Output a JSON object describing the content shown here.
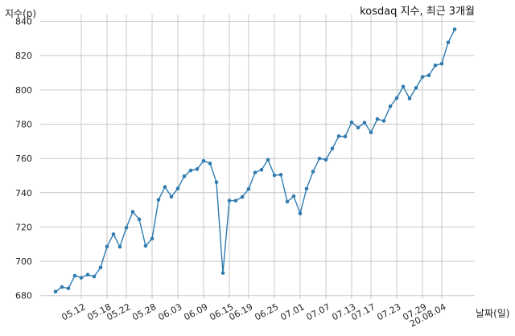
{
  "chart_data": {
    "type": "line",
    "title": "kosdaq 지수, 최근 3개월",
    "ylabel": "지수(p)",
    "xlabel": "날짜(일)",
    "ylim": [
      678,
      844
    ],
    "yticks": [
      680,
      700,
      720,
      740,
      760,
      780,
      800,
      820,
      840
    ],
    "grid": true,
    "color": "#2f7bb0",
    "xtick_labels": [
      "05.12",
      "05.18",
      "05.22",
      "05.28",
      "06.03",
      "06.09",
      "06.15",
      "06.19",
      "06.25",
      "07.01",
      "07.07",
      "07.13",
      "07.17",
      "07.23",
      "07.29",
      "20.08.04"
    ],
    "xtick_index": [
      4,
      8,
      11,
      15,
      19,
      23,
      27,
      30,
      34,
      38,
      42,
      46,
      49,
      53,
      57,
      60
    ],
    "values": [
      682.3,
      685.0,
      684.2,
      691.6,
      690.4,
      692.2,
      691.1,
      696.4,
      708.6,
      715.8,
      708.5,
      719.6,
      728.9,
      724.5,
      709.0,
      713.2,
      735.9,
      743.4,
      737.7,
      742.5,
      749.6,
      753.0,
      753.8,
      758.6,
      757.1,
      746.1,
      693.2,
      735.4,
      735.4,
      737.5,
      742.2,
      751.8,
      753.4,
      759.2,
      750.2,
      750.5,
      734.8,
      738.0,
      727.9,
      742.4,
      752.3,
      760.0,
      759.3,
      765.8,
      773.0,
      772.8,
      781.1,
      778.0,
      780.9,
      775.2,
      783.0,
      781.9,
      790.4,
      795.2,
      801.9,
      795.0,
      801.2,
      807.6,
      808.5,
      814.3,
      815.3,
      827.7,
      835.3
    ]
  }
}
